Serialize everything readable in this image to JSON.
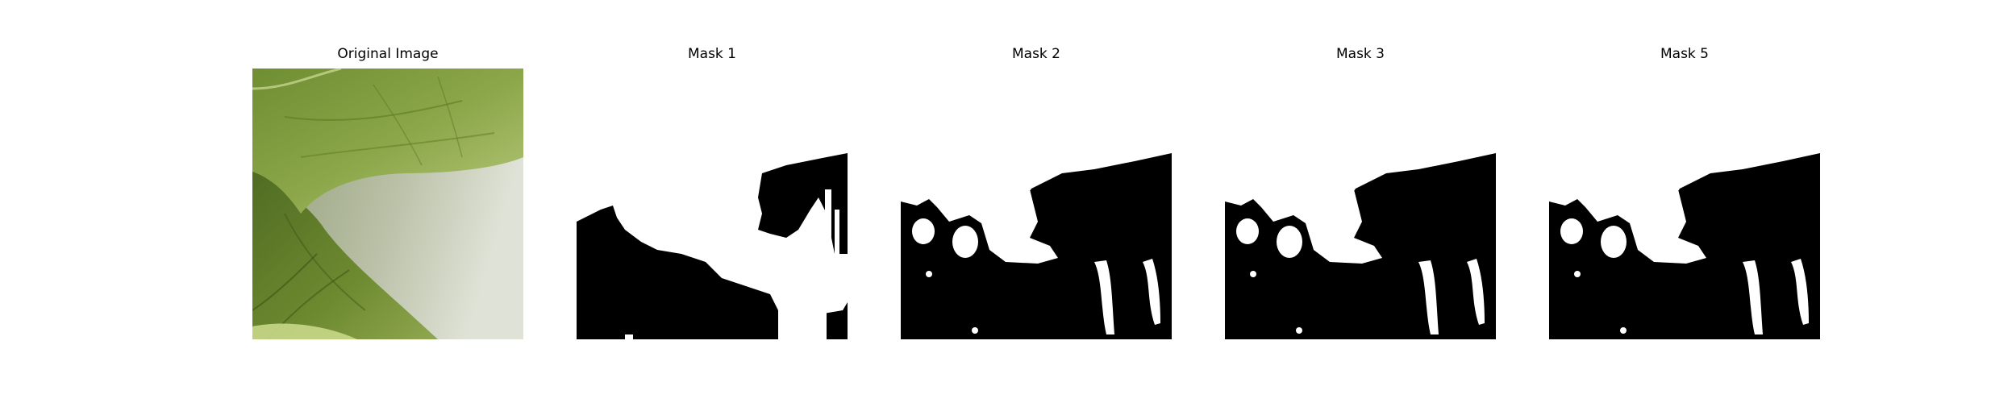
{
  "panels": [
    {
      "title": "Original Image",
      "kind": "photo",
      "icon": "leaf-photo"
    },
    {
      "title": "Mask 1",
      "kind": "mask",
      "icon": "binary-mask"
    },
    {
      "title": "Mask 2",
      "kind": "mask",
      "icon": "binary-mask"
    },
    {
      "title": "Mask 3",
      "kind": "mask",
      "icon": "binary-mask"
    },
    {
      "title": "Mask 5",
      "kind": "mask",
      "icon": "binary-mask"
    }
  ],
  "colors": {
    "background": "#ffffff",
    "mask_foreground": "#ffffff",
    "mask_background": "#000000",
    "leaf_dark": "#5c7a2a",
    "leaf_light": "#a8c060",
    "paper": "#c9cfc0"
  }
}
